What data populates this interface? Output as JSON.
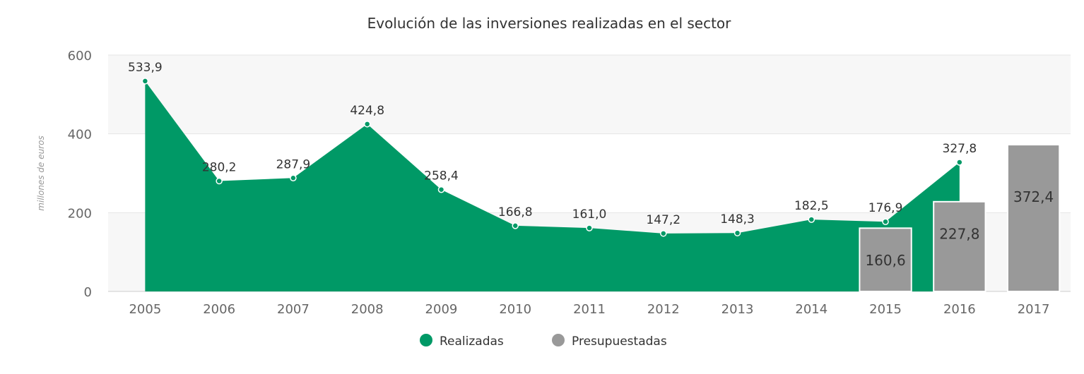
{
  "chart_data": {
    "type": "area",
    "title": "Evolución de las inversiones realizadas en el sector",
    "ylabel": "millones de euros",
    "xlabel": "",
    "ylim": [
      0,
      600
    ],
    "yticks": [
      "0",
      "200",
      "400",
      "600"
    ],
    "categories": [
      "2005",
      "2006",
      "2007",
      "2008",
      "2009",
      "2010",
      "2011",
      "2012",
      "2013",
      "2014",
      "2015",
      "2016",
      "2017"
    ],
    "series": [
      {
        "name": "Realizadas",
        "type": "area",
        "color": "#009966",
        "values": [
          533.9,
          280.2,
          287.9,
          424.8,
          258.4,
          166.8,
          161.0,
          147.2,
          148.3,
          182.5,
          176.9,
          327.8,
          null
        ],
        "labels": [
          "533,9",
          "280,2",
          "287,9",
          "424,8",
          "258,4",
          "166,8",
          "161,0",
          "147,2",
          "148,3",
          "182,5",
          "176,9",
          "327,8",
          ""
        ]
      },
      {
        "name": "Presupuestadas",
        "type": "bar",
        "color": "#999999",
        "values": [
          null,
          null,
          null,
          null,
          null,
          null,
          null,
          null,
          null,
          null,
          160.6,
          227.8,
          372.4
        ],
        "labels": [
          "",
          "",
          "",
          "",
          "",
          "",
          "",
          "",
          "",
          "",
          "160,6",
          "227,8",
          "372,4"
        ]
      }
    ],
    "legend": "bottom-center",
    "grid": true
  }
}
